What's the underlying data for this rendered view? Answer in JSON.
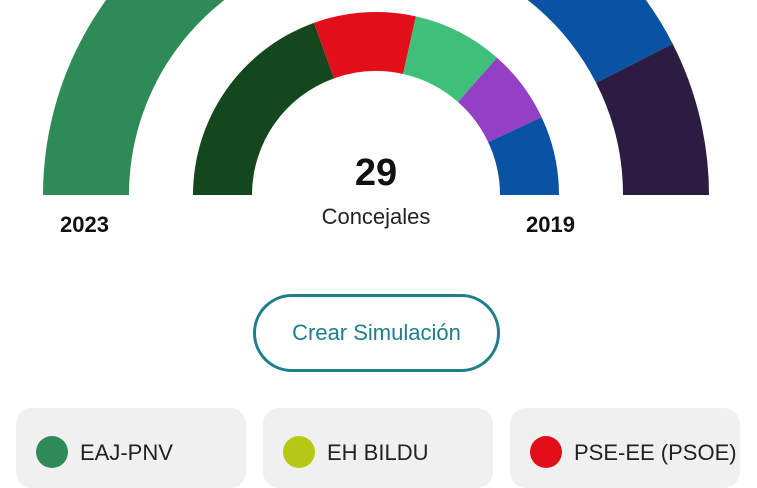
{
  "chart": {
    "center_count": "29",
    "center_label": "Concejales",
    "year_left": "2023",
    "year_right": "2019",
    "outer_ring": [
      {
        "color": "#2e8b57",
        "share": 0.38
      },
      {
        "color": "#1a6b43",
        "share": 0.05
      },
      {
        "color": "#e20f1a",
        "share": 0.17
      },
      {
        "color": "#0a52a3",
        "share": 0.25
      },
      {
        "color": "#2d1c42",
        "share": 0.15
      }
    ],
    "inner_ring": [
      {
        "color": "#14471e",
        "share": 0.39
      },
      {
        "color": "#e20f1a",
        "share": 0.18
      },
      {
        "color": "#3fc07a",
        "share": 0.16
      },
      {
        "color": "#9440c4",
        "share": 0.13
      },
      {
        "color": "#0a52a3",
        "share": 0.14
      }
    ]
  },
  "simulate_button": "Crear Simulación",
  "parties": [
    {
      "name": "EAJ-PNV",
      "color": "#2e8b57"
    },
    {
      "name": "EH BILDU",
      "color": "#b3c916"
    },
    {
      "name": "PSE-EE (PSOE)",
      "color": "#e20f1a"
    }
  ]
}
